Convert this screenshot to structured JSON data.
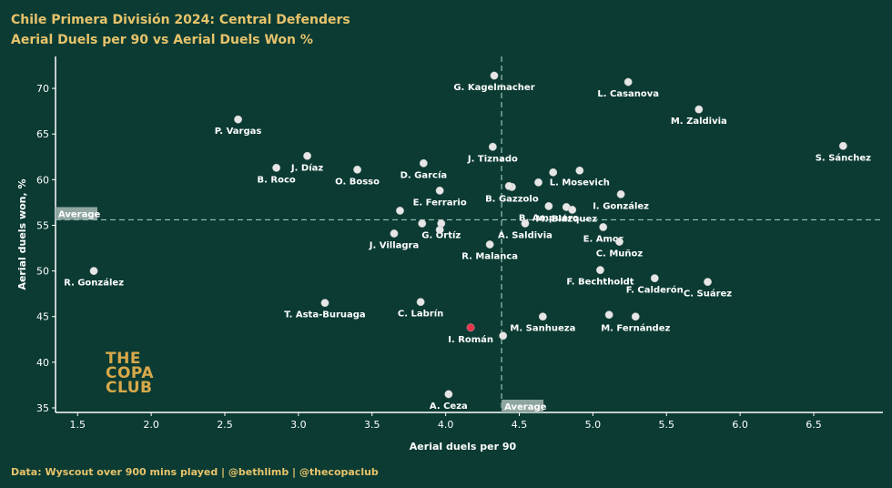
{
  "title": "Chile Primera División 2024: Central Defenders",
  "subtitle": "Aerial Duels per 90 vs Aerial Duels Won %",
  "footer": "Data: Wyscout over 900 mins played | @bethlimb | @thecopaclub",
  "logo_lines": [
    "THE",
    "COPA",
    "CLUB"
  ],
  "colors": {
    "background": "#0b3b33",
    "point": "#e6e6e6",
    "highlight": "#e8334a",
    "accent": "#e7c36b"
  },
  "chart_data": {
    "type": "scatter",
    "xlabel": "Aerial duels per 90",
    "ylabel": "Aerial duels won, %",
    "xlim": [
      1.35,
      6.97
    ],
    "ylim": [
      34.5,
      73.5
    ],
    "xticks": [
      1.5,
      2.0,
      2.5,
      3.0,
      3.5,
      4.0,
      4.5,
      5.0,
      5.5,
      6.0,
      6.5
    ],
    "yticks": [
      35,
      40,
      45,
      50,
      55,
      60,
      65,
      70
    ],
    "average_x": 4.38,
    "average_y": 55.6,
    "average_label": "Average",
    "grid": false,
    "points": [
      {
        "x": 4.33,
        "y": 71.4,
        "label": "G. Kagelmacher"
      },
      {
        "x": 5.24,
        "y": 70.7,
        "label": "L. Casanova"
      },
      {
        "x": 5.72,
        "y": 67.7,
        "label": "M. Zaldivia"
      },
      {
        "x": 2.59,
        "y": 66.6,
        "label": "P. Vargas"
      },
      {
        "x": 6.7,
        "y": 63.7,
        "label": "S. Sánchez"
      },
      {
        "x": 4.32,
        "y": 63.6,
        "label": "J. Tiznado"
      },
      {
        "x": 3.06,
        "y": 62.6,
        "label": "J. Díaz"
      },
      {
        "x": 2.85,
        "y": 61.3,
        "label": "B. Roco"
      },
      {
        "x": 3.4,
        "y": 61.1,
        "label": "O. Bosso"
      },
      {
        "x": 3.85,
        "y": 61.8,
        "label": "D. García"
      },
      {
        "x": 4.91,
        "y": 61.0,
        "label": "L. Mosevich"
      },
      {
        "x": 4.73,
        "y": 60.8,
        "label": ""
      },
      {
        "x": 4.63,
        "y": 59.7,
        "label": ""
      },
      {
        "x": 4.45,
        "y": 59.2,
        "label": "B. Gazzolo"
      },
      {
        "x": 4.43,
        "y": 59.3,
        "label": ""
      },
      {
        "x": 3.96,
        "y": 58.8,
        "label": "E. Ferrario"
      },
      {
        "x": 5.19,
        "y": 58.4,
        "label": "I. González"
      },
      {
        "x": 4.7,
        "y": 57.1,
        "label": "B. Ampuero"
      },
      {
        "x": 4.82,
        "y": 57.0,
        "label": "M. Blázquez"
      },
      {
        "x": 4.86,
        "y": 56.7,
        "label": ""
      },
      {
        "x": 3.69,
        "y": 56.6,
        "label": ""
      },
      {
        "x": 3.84,
        "y": 55.2,
        "label": ""
      },
      {
        "x": 3.97,
        "y": 55.2,
        "label": "G. Ortíz"
      },
      {
        "x": 3.96,
        "y": 54.5,
        "label": ""
      },
      {
        "x": 4.54,
        "y": 55.2,
        "label": "A. Saldivia"
      },
      {
        "x": 5.07,
        "y": 54.8,
        "label": "E. Amor"
      },
      {
        "x": 3.65,
        "y": 54.1,
        "label": "J. Villagra"
      },
      {
        "x": 4.3,
        "y": 52.9,
        "label": "R. Malanca"
      },
      {
        "x": 5.18,
        "y": 53.2,
        "label": "C. Muñoz"
      },
      {
        "x": 1.61,
        "y": 50.0,
        "label": "R. González"
      },
      {
        "x": 5.05,
        "y": 50.1,
        "label": "F. Bechtholdt"
      },
      {
        "x": 5.42,
        "y": 49.2,
        "label": "F. Calderón"
      },
      {
        "x": 5.78,
        "y": 48.8,
        "label": "C. Suárez"
      },
      {
        "x": 3.18,
        "y": 46.5,
        "label": "T. Asta-Buruaga"
      },
      {
        "x": 3.83,
        "y": 46.6,
        "label": "C. Labrín"
      },
      {
        "x": 4.66,
        "y": 45.0,
        "label": "M. Sanhueza"
      },
      {
        "x": 5.11,
        "y": 45.2,
        "label": ""
      },
      {
        "x": 5.29,
        "y": 45.0,
        "label": "M. Fernández"
      },
      {
        "x": 4.17,
        "y": 43.8,
        "label": "I. Román",
        "highlight": true
      },
      {
        "x": 4.39,
        "y": 42.9,
        "label": ""
      },
      {
        "x": 4.02,
        "y": 36.5,
        "label": "A. Ceza"
      }
    ]
  }
}
